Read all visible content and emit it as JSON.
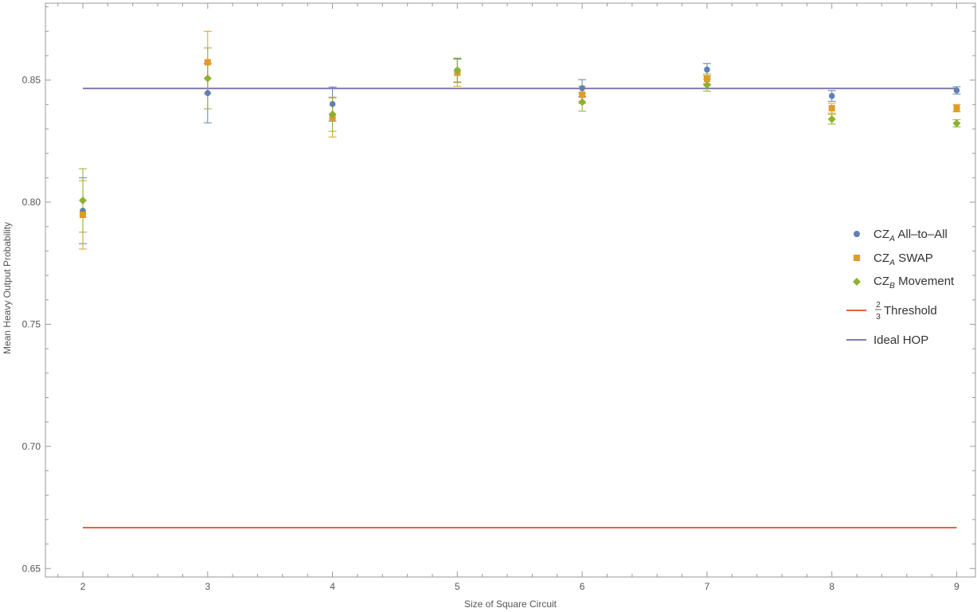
{
  "chart_data": {
    "type": "scatter",
    "xlabel": "Size of Square Circuit",
    "ylabel": "Mean Heavy Output Probability",
    "xlim": [
      1.7,
      9.15
    ],
    "ylim": [
      0.6465,
      0.8815
    ],
    "x_ticks": [
      "2",
      "3",
      "4",
      "5",
      "6",
      "7",
      "8",
      "9"
    ],
    "y_ticks": [
      "0.65",
      "0.70",
      "0.75",
      "0.80",
      "0.85"
    ],
    "grid": false,
    "legend_position": "right",
    "series": [
      {
        "name": "CZ_A All–to–All",
        "legend_main": "CZ",
        "legend_sub": "A",
        "legend_rest": " All–to–All",
        "marker": "circle",
        "color": "#5E81B5",
        "x": [
          2,
          3,
          4,
          5,
          6,
          7,
          8,
          9
        ],
        "y": [
          0.7965,
          0.8447,
          0.8402,
          0.854,
          0.8467,
          0.8543,
          0.8435,
          0.8458
        ],
        "err": [
          0.0135,
          0.0122,
          0.007,
          0.0048,
          0.0035,
          0.0025,
          0.0022,
          0.0015
        ]
      },
      {
        "name": "CZ_A SWAP",
        "legend_main": "CZ",
        "legend_sub": "A",
        "legend_rest": " SWAP",
        "marker": "square",
        "color": "#E19C24",
        "x": [
          2,
          3,
          4,
          5,
          6,
          7,
          8,
          9
        ],
        "y": [
          0.7948,
          0.8573,
          0.8347,
          0.853,
          0.844,
          0.8505,
          0.8385,
          0.8385
        ],
        "err": [
          0.014,
          0.0127,
          0.008,
          0.0055,
          0.0035,
          0.002,
          0.002,
          0.0015
        ]
      },
      {
        "name": "CZ_B Movement",
        "legend_main": "CZ",
        "legend_sub": "B",
        "legend_rest": " Movement",
        "marker": "diamond",
        "color": "#8FB032",
        "x": [
          2,
          3,
          4,
          5,
          6,
          7,
          8,
          9
        ],
        "y": [
          0.8007,
          0.8507,
          0.836,
          0.854,
          0.841,
          0.848,
          0.834,
          0.8323
        ],
        "err": [
          0.013,
          0.0125,
          0.007,
          0.005,
          0.0037,
          0.0025,
          0.002,
          0.0015
        ]
      }
    ],
    "reference_lines": [
      {
        "name": "2/3 Threshold",
        "legend_num": "2",
        "legend_den": "3",
        "legend_rest": " Threshold",
        "color": "#EB6235",
        "y": 0.6667,
        "x_range": [
          2,
          9
        ]
      },
      {
        "name": "Ideal HOP",
        "legend_rest": "Ideal HOP",
        "color": "#8778B3",
        "y": 0.8466,
        "x_range": [
          2,
          9
        ]
      }
    ]
  }
}
